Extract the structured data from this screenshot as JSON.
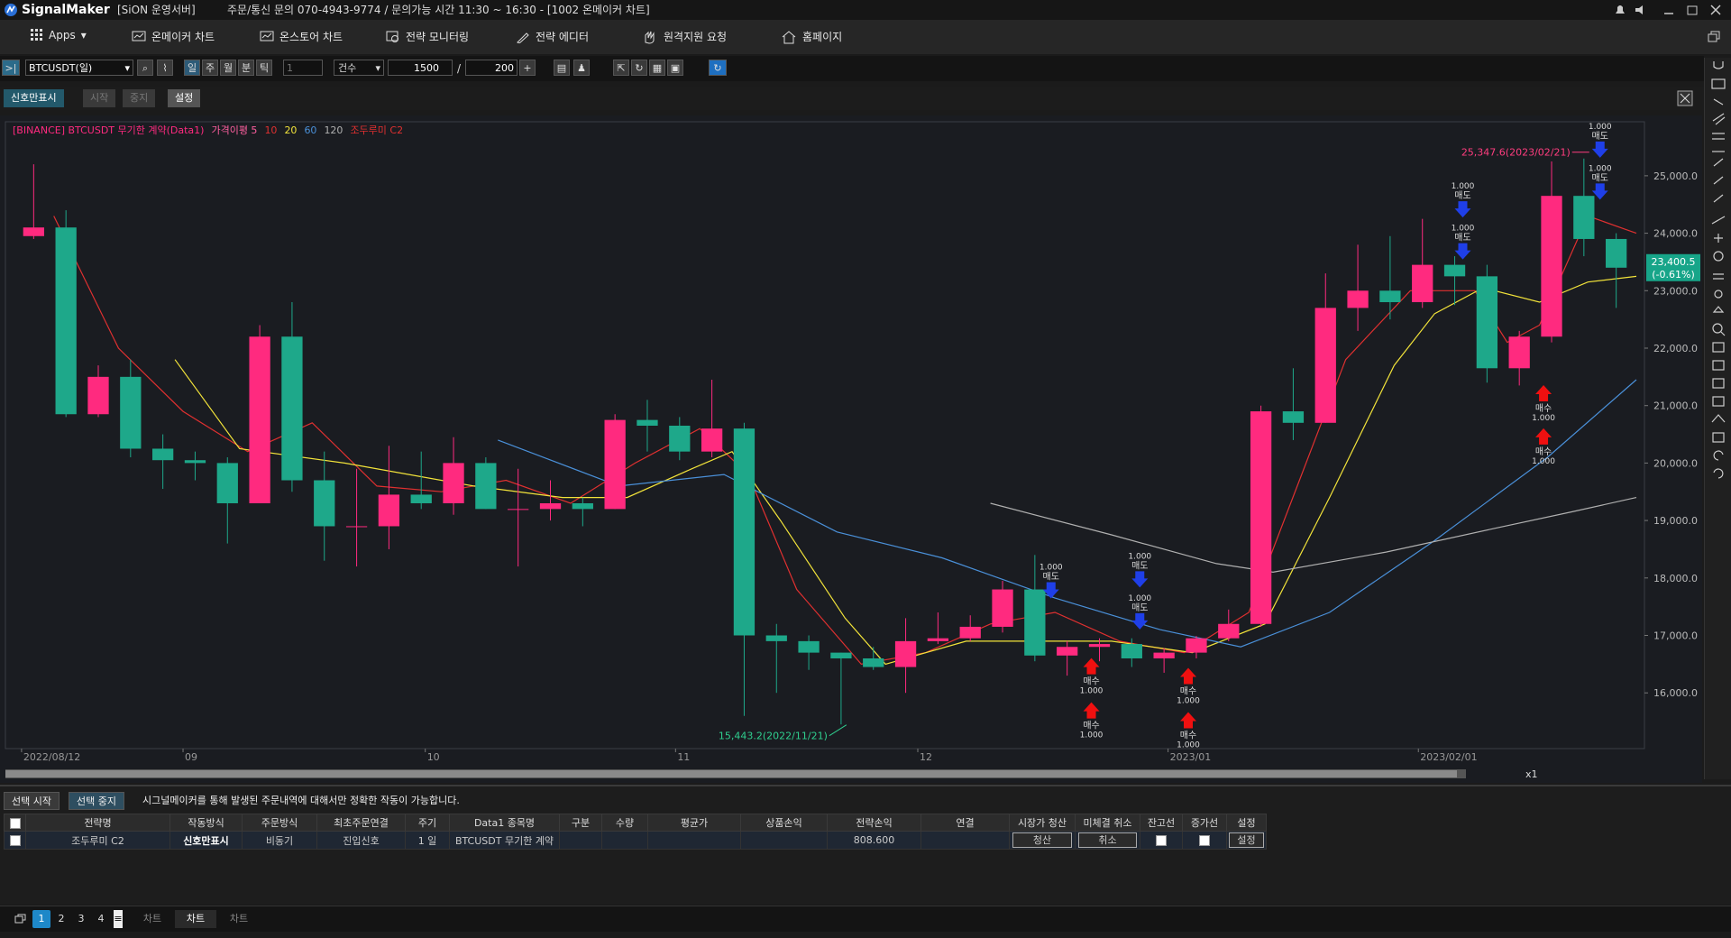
{
  "titlebar": {
    "app": "SignalMaker",
    "server": "[SiON 운영서버]",
    "notice": "주문/통신 문의 070-4943-9774 / 문의가능 시간 11:30 ~ 16:30 - [1002 온메이커 차트]"
  },
  "menu": {
    "items": [
      "Apps",
      "온메이커 차트",
      "온스토어 차트",
      "전략 모니터링",
      "전략 에디터",
      "원격지원 요청",
      "홈페이지"
    ]
  },
  "toolbar": {
    "symbol": "BTCUSDT(일)",
    "periods": [
      "일",
      "주",
      "월",
      "분",
      "틱"
    ],
    "interval": "1",
    "count_mode": "건수",
    "count": "1500",
    "separator": "/",
    "visible": "200"
  },
  "signalbar": {
    "buttons": [
      "신호만표시",
      "시작",
      "중지",
      "설정"
    ]
  },
  "chart": {
    "type": "candlestick",
    "legend": [
      {
        "text": "[BINANCE] BTCUSDT 무기한 계약(Data1)",
        "color": "#ff2a7f"
      },
      {
        "text": "가격이평 5",
        "color": "#ff5fa0"
      },
      {
        "text": "10",
        "color": "#e03030"
      },
      {
        "text": "20",
        "color": "#f2e33a"
      },
      {
        "text": "60",
        "color": "#4a90d9"
      },
      {
        "text": "120",
        "color": "#b0b0b0"
      },
      {
        "text": "조두루미 C2",
        "color": "#e03030"
      }
    ],
    "up_color": "#ff2a7f",
    "down_color": "#1ea88a",
    "xlim": [
      -2,
      201
    ],
    "ylim": [
      15030,
      25940
    ],
    "xticks": [
      {
        "value": 0,
        "label": "2022/08/12"
      },
      {
        "value": 20,
        "label": "09"
      },
      {
        "value": 50,
        "label": "10"
      },
      {
        "value": 81,
        "label": "11"
      },
      {
        "value": 111,
        "label": "12"
      },
      {
        "value": 142,
        "label": "2023/01"
      },
      {
        "value": 173,
        "label": "2023/02/01"
      }
    ],
    "yticks": [
      {
        "value": 16000,
        "label": "16,000.0"
      },
      {
        "value": 17000,
        "label": "17,000.0"
      },
      {
        "value": 18000,
        "label": "18,000.0"
      },
      {
        "value": 19000,
        "label": "19,000.0"
      },
      {
        "value": 20000,
        "label": "20,000.0"
      },
      {
        "value": 21000,
        "label": "21,000.0"
      },
      {
        "value": 22000,
        "label": "22,000.0"
      },
      {
        "value": 23000,
        "label": "23,000.0"
      },
      {
        "value": 24000,
        "label": "24,000.0"
      },
      {
        "value": 25000,
        "label": "25,000.0"
      }
    ],
    "candles": {
      "x": [
        0,
        4,
        8,
        12,
        16,
        20,
        24,
        28,
        32,
        36,
        40,
        44,
        48,
        52,
        56,
        60,
        64,
        68,
        72,
        76,
        80,
        84,
        88,
        92,
        96,
        100,
        104,
        108,
        112,
        116,
        120,
        124,
        128,
        132,
        136,
        140,
        144,
        148,
        152,
        156,
        160,
        164,
        168,
        172,
        176,
        180,
        184,
        188,
        192,
        196
      ],
      "open": [
        23950,
        24100,
        20850,
        21500,
        20250,
        20050,
        20000,
        19300,
        22200,
        19700,
        18900,
        18900,
        19450,
        19300,
        20000,
        19200,
        19200,
        19300,
        19200,
        20750,
        20650,
        20200,
        20600,
        17000,
        16900,
        16700,
        16600,
        16450,
        16900,
        16950,
        17150,
        17800,
        16650,
        16800,
        16850,
        16600,
        16700,
        16950,
        17200,
        20900,
        20700,
        22700,
        23000,
        22800,
        23450,
        23250,
        21650,
        22200,
        24650,
        23900
      ],
      "high": [
        25200,
        24400,
        21700,
        21800,
        20500,
        20200,
        20100,
        22400,
        22800,
        20200,
        19900,
        20300,
        20200,
        20450,
        20100,
        19900,
        19700,
        19400,
        20850,
        21100,
        20800,
        21450,
        20700,
        17200,
        17000,
        16700,
        16800,
        17300,
        17400,
        17350,
        17950,
        18400,
        16900,
        16950,
        16950,
        16780,
        16990,
        17450,
        21000,
        21650,
        23300,
        23800,
        23950,
        24250,
        23600,
        23450,
        22300,
        25250,
        25300,
        24000
      ],
      "low": [
        23900,
        20800,
        20800,
        20100,
        19550,
        19700,
        18600,
        19300,
        19500,
        18300,
        18200,
        18500,
        19200,
        19100,
        19200,
        18200,
        19000,
        18900,
        19200,
        20200,
        20050,
        20100,
        15600,
        16000,
        16400,
        15450,
        16400,
        16000,
        16850,
        16900,
        17050,
        16550,
        16300,
        16550,
        16450,
        16350,
        16600,
        16900,
        17150,
        20400,
        20700,
        22300,
        22500,
        22700,
        22750,
        21400,
        21350,
        22100,
        23600,
        22700
      ],
      "close": [
        24100,
        20850,
        21500,
        20250,
        20050,
        20000,
        19300,
        22200,
        19700,
        18900,
        18900,
        19450,
        19300,
        20000,
        19200,
        19200,
        19300,
        19200,
        20750,
        20650,
        20200,
        20600,
        17000,
        16900,
        16700,
        16600,
        16450,
        16900,
        16950,
        17150,
        17800,
        16650,
        16800,
        16850,
        16600,
        16700,
        16950,
        17200,
        20900,
        20700,
        22700,
        23000,
        22800,
        23450,
        23250,
        21650,
        22200,
        24650,
        23900,
        23400
      ]
    },
    "moving_averages": [
      {
        "color": "#e03030",
        "x": [
          4,
          12,
          20,
          28,
          36,
          44,
          52,
          60,
          68,
          76,
          84,
          90,
          96,
          104,
          112,
          120,
          128,
          136,
          144,
          152,
          158,
          164,
          172,
          180,
          184,
          188,
          194,
          200
        ],
        "values": [
          24300,
          22000,
          20900,
          20200,
          20700,
          19600,
          19500,
          19700,
          19300,
          20000,
          20600,
          19800,
          17800,
          16500,
          16700,
          17200,
          17400,
          16900,
          16700,
          17400,
          19600,
          21800,
          23000,
          23000,
          22100,
          22400,
          24300,
          24000
        ]
      },
      {
        "color": "#f2e33a",
        "x": [
          19,
          27,
          40,
          56,
          67,
          75,
          83,
          88,
          94,
          102,
          107,
          117,
          135,
          145,
          154,
          162,
          170,
          175,
          181,
          188,
          194,
          200
        ],
        "values": [
          21800,
          20250,
          20000,
          19600,
          19400,
          19400,
          19900,
          20200,
          19000,
          17300,
          16500,
          16900,
          16900,
          16700,
          17200,
          19400,
          21700,
          22600,
          23050,
          22800,
          23150,
          23250
        ]
      },
      {
        "color": "#4a90d9",
        "x": [
          59,
          74,
          87,
          101,
          114,
          128,
          141,
          151,
          162,
          175,
          189,
          200
        ],
        "values": [
          20400,
          19600,
          19800,
          18800,
          18350,
          17650,
          17100,
          16800,
          17400,
          18650,
          20100,
          21450
        ]
      },
      {
        "color": "#b0b0b0",
        "x": [
          120,
          135,
          148,
          155,
          169,
          182,
          192,
          200
        ],
        "values": [
          19300,
          18750,
          18250,
          18100,
          18450,
          18850,
          19150,
          19400
        ]
      }
    ],
    "signals": [
      {
        "side": "매도",
        "qty": "1.000",
        "x": 126,
        "price": 17770
      },
      {
        "side": "매도",
        "qty": "1.000",
        "x": 137,
        "price": 17960
      },
      {
        "side": "매도",
        "qty": "1.000",
        "x": 137,
        "price": 17230
      },
      {
        "side": "매도",
        "qty": "1.000",
        "x": 177,
        "price": 24400
      },
      {
        "side": "매도",
        "qty": "1.000",
        "x": 177,
        "price": 23670
      },
      {
        "side": "매도",
        "qty": "1.000",
        "x": 194,
        "price": 25440
      },
      {
        "side": "매도",
        "qty": "1.000",
        "x": 194,
        "price": 24710
      },
      {
        "side": "매수",
        "qty": "1.000",
        "x": 131,
        "price": 16480
      },
      {
        "side": "매수",
        "qty": "1.000",
        "x": 131,
        "price": 15710
      },
      {
        "side": "매수",
        "qty": "1.000",
        "x": 143,
        "price": 16310
      },
      {
        "side": "매수",
        "qty": "1.000",
        "x": 143,
        "price": 15540
      },
      {
        "side": "매수",
        "qty": "1.000",
        "x": 187,
        "price": 21230
      },
      {
        "side": "매수",
        "qty": "1.000",
        "x": 187,
        "price": 20480
      }
    ],
    "annotations": [
      {
        "value": 25347.6,
        "label": "25,347.6(2023/02/21)",
        "x": 193
      },
      {
        "value": 15443.2,
        "label": "15,443.2(2022/11/21)",
        "x": 101
      }
    ],
    "last_price": {
      "value": 23400.5,
      "label": "23,400.5",
      "change": {
        "value": -0.61,
        "label": "(-0.61%)"
      }
    },
    "zoom": "x1"
  },
  "panel": {
    "buttons": [
      "선택 시작",
      "선택 중지"
    ],
    "notice": "시그널메이커를 통해 발생된 주문내역에 대해서만 정확한 작동이 가능합니다.",
    "columns": [
      "전략명",
      "작동방식",
      "주문방식",
      "최초주문연결",
      "주기",
      "Data1 종목명",
      "구분",
      "수량",
      "평균가",
      "상품손익",
      "전략손익",
      "연결",
      "시장가 청산",
      "미체결 취소",
      "잔고선",
      "증가선",
      "설정"
    ],
    "rows": [
      [
        "조두루미 C2",
        "신호만표시",
        "비동기",
        "진입신호",
        "1 일",
        "BTCUSDT 무기한 계약",
        null,
        null,
        null,
        null,
        "808.600",
        null,
        "청산",
        "취소",
        null,
        null,
        "설정"
      ]
    ]
  },
  "tabs": {
    "pages": [
      "1",
      "2",
      "3",
      "4"
    ],
    "windows": [
      "차트",
      "차트",
      "차트"
    ]
  }
}
